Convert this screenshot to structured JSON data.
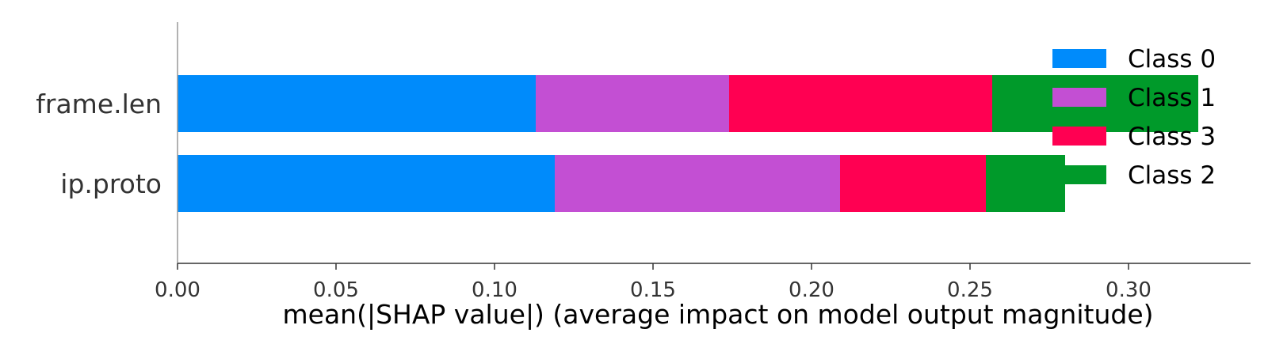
{
  "chart_data": {
    "type": "bar",
    "orientation": "horizontal",
    "stacked": true,
    "categories": [
      "frame.len",
      "ip.proto"
    ],
    "series": [
      {
        "name": "Class 0",
        "color": "#008bfb",
        "values": [
          0.113,
          0.119
        ]
      },
      {
        "name": "Class 1",
        "color": "#c34fd3",
        "values": [
          0.061,
          0.09
        ]
      },
      {
        "name": "Class 3",
        "color": "#ff0052",
        "values": [
          0.083,
          0.046
        ]
      },
      {
        "name": "Class 2",
        "color": "#009a2a",
        "values": [
          0.065,
          0.025
        ]
      }
    ],
    "legend_order": [
      "Class 0",
      "Class 1",
      "Class 3",
      "Class 2"
    ],
    "legend_position": "top-right",
    "xlabel": "mean(|SHAP value|) (average impact on model output magnitude)",
    "xlim": [
      0,
      0.338
    ],
    "xticks": [
      "0.00",
      "0.05",
      "0.10",
      "0.15",
      "0.20",
      "0.25",
      "0.30"
    ],
    "grid": false
  }
}
